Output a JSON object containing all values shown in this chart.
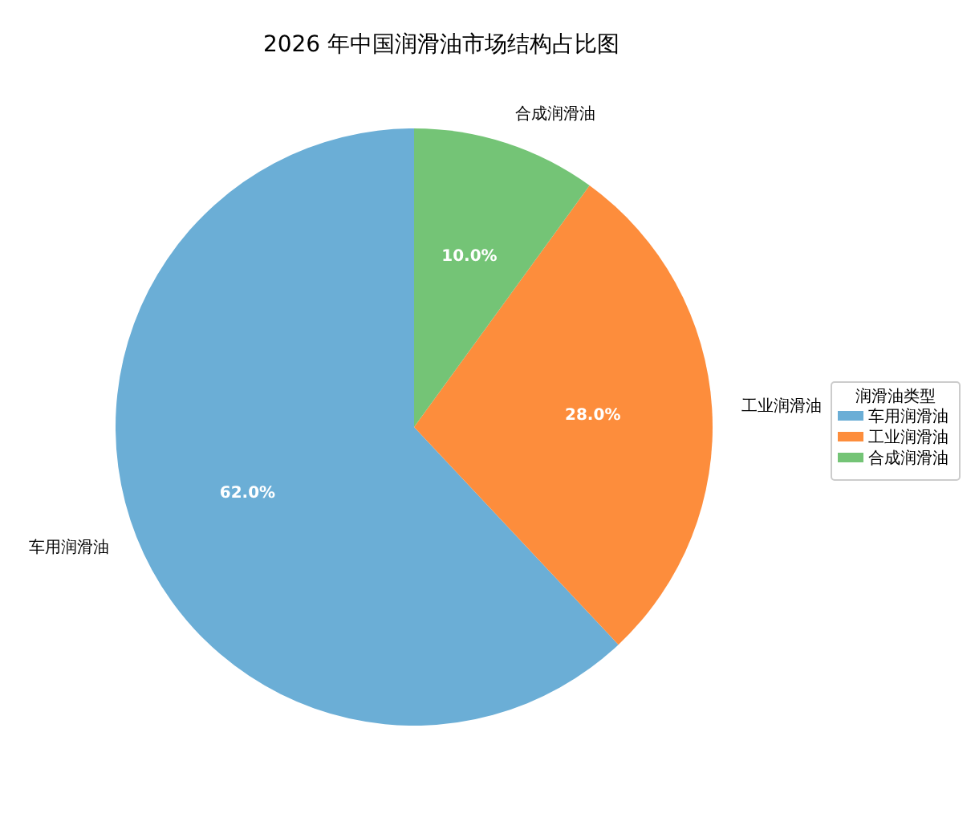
{
  "chart_data": {
    "type": "pie",
    "title": "2026 年中国润滑油市场结构占比图",
    "legend_title": "润滑油类型",
    "categories": [
      "车用润滑油",
      "工业润滑油",
      "合成润滑油"
    ],
    "values": [
      62,
      28,
      10
    ],
    "colors": [
      "#6baed6",
      "#fd8d3c",
      "#74c476"
    ],
    "value_labels": [
      "62.0%",
      "28.0%",
      "10.0%"
    ],
    "legend": "right"
  }
}
